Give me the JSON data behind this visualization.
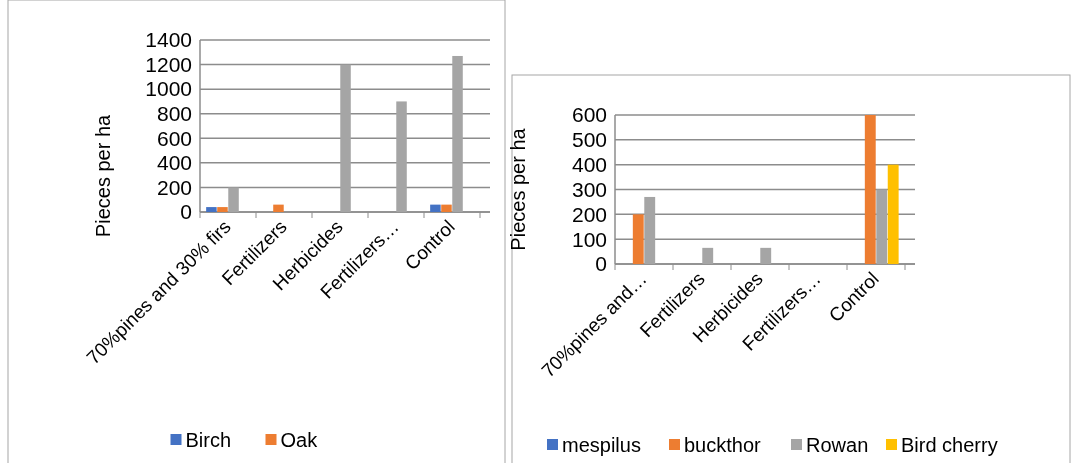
{
  "chart_data": [
    {
      "type": "bar",
      "ylabel": "Pieces per ha",
      "categories": [
        "70%pines and 30% firs",
        "Fertilizers",
        "Herbicides",
        "Fertilizers…",
        "Control"
      ],
      "series": [
        {
          "name": "Birch",
          "color": "#4472c4",
          "values": [
            40,
            0,
            0,
            0,
            60
          ]
        },
        {
          "name": "Oak",
          "color": "#ed7d31",
          "values": [
            40,
            60,
            0,
            0,
            60
          ]
        },
        {
          "color": "#a5a5a5",
          "values": [
            200,
            0,
            1200,
            900,
            1270
          ]
        },
        {
          "color": "#ffc000",
          "values": [
            0,
            0,
            0,
            0,
            0
          ]
        }
      ],
      "ylim": [
        0,
        1400
      ],
      "yticks": [
        0,
        200,
        400,
        600,
        800,
        1000,
        1200,
        1400
      ],
      "grid": "y",
      "legend": "bottom"
    },
    {
      "type": "bar",
      "ylabel": "Pieces per ha",
      "categories": [
        "70%pines and…",
        "Fertilizers",
        "Herbicides",
        "Fertilizers…",
        "Control"
      ],
      "series": [
        {
          "name": "mespilus",
          "color": "#4472c4",
          "values": [
            0,
            0,
            0,
            0,
            0
          ]
        },
        {
          "name": "buckthor",
          "color": "#ed7d31",
          "values": [
            200,
            0,
            0,
            0,
            600
          ]
        },
        {
          "name": "Rowan",
          "color": "#a5a5a5",
          "values": [
            270,
            65,
            65,
            0,
            300
          ]
        },
        {
          "name": "Bird cherry",
          "color": "#ffc000",
          "values": [
            0,
            0,
            0,
            0,
            400
          ]
        }
      ],
      "ylim": [
        0,
        600
      ],
      "yticks": [
        0,
        100,
        200,
        300,
        400,
        500,
        600
      ],
      "grid": "y",
      "legend": "bottom"
    }
  ]
}
